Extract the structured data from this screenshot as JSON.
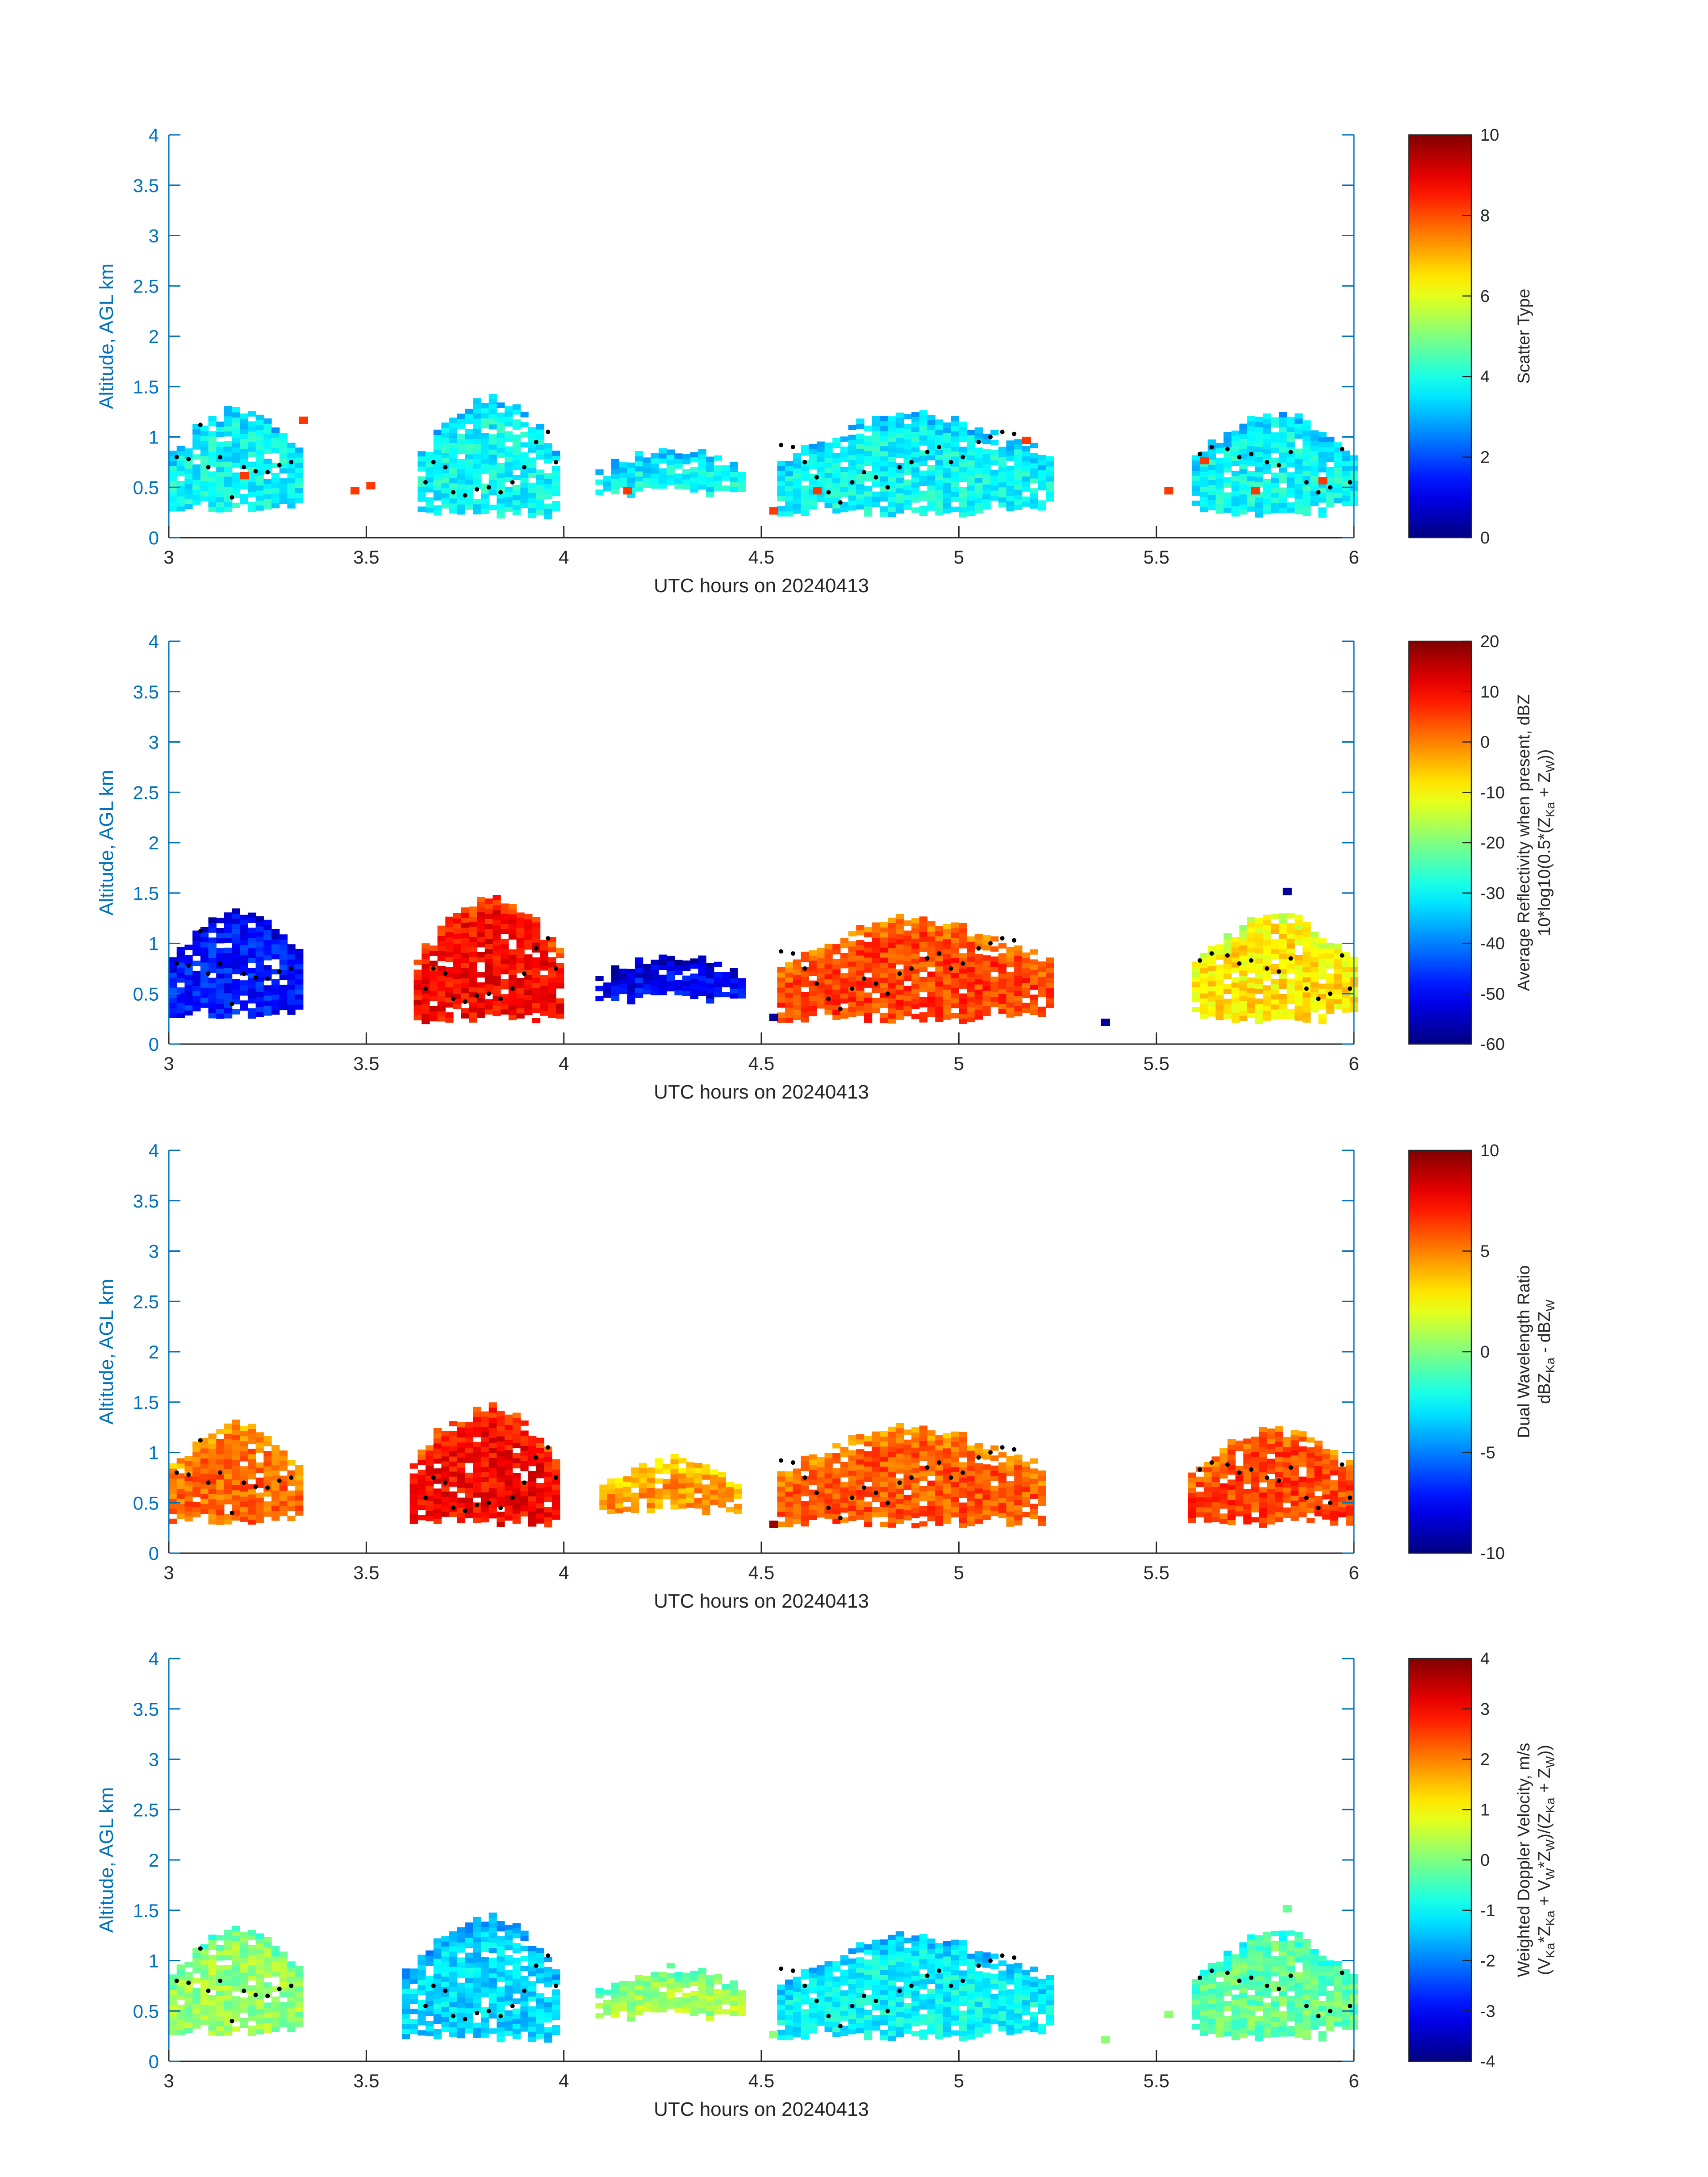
{
  "chart_data": [
    {
      "type": "heatmap",
      "xlabel": "UTC hours on 20240413",
      "ylabel": "Altitude, AGL km",
      "xlim": [
        3,
        6
      ],
      "ylim": [
        0,
        4
      ],
      "xticks": [
        "3",
        "3.5",
        "4",
        "4.5",
        "5",
        "5.5",
        "6"
      ],
      "yticks": [
        "0",
        "0.5",
        "1",
        "1.5",
        "2",
        "2.5",
        "3",
        "3.5",
        "4"
      ],
      "colorbar": {
        "label": "Scatter Type",
        "sublabel": "",
        "min": 0,
        "max": 10,
        "ticks": [
          "0",
          "2",
          "4",
          "6",
          "8",
          "10"
        ]
      },
      "regions": [
        {
          "x": [
            3.0,
            3.34
          ],
          "ybot": 0.25,
          "ytop": 1.25,
          "value": 3.8
        },
        {
          "x": [
            3.63,
            3.98
          ],
          "ybot": 0.18,
          "ytop": 1.35,
          "value": 3.8
        },
        {
          "x": [
            4.08,
            4.46
          ],
          "ybot": 0.38,
          "ytop": 0.85,
          "value": 3.8
        },
        {
          "x": [
            4.54,
            5.23
          ],
          "ybot": 0.2,
          "ytop": 1.2,
          "value": 3.8
        },
        {
          "x": [
            5.59,
            6.0
          ],
          "ybot": 0.2,
          "ytop": 1.2,
          "value": 3.8
        }
      ],
      "outliers": [
        {
          "x": 3.33,
          "y": 1.15,
          "value": 8.2
        },
        {
          "x": 3.18,
          "y": 0.6,
          "value": 8.2
        },
        {
          "x": 3.46,
          "y": 0.45,
          "value": 8.2
        },
        {
          "x": 3.5,
          "y": 0.5,
          "value": 8.2
        },
        {
          "x": 4.15,
          "y": 0.45,
          "value": 8.2
        },
        {
          "x": 4.52,
          "y": 0.25,
          "value": 8.2
        },
        {
          "x": 4.63,
          "y": 0.45,
          "value": 8.2
        },
        {
          "x": 5.16,
          "y": 0.95,
          "value": 8.2
        },
        {
          "x": 5.52,
          "y": 0.45,
          "value": 8.2
        },
        {
          "x": 5.61,
          "y": 0.75,
          "value": 8.2
        },
        {
          "x": 5.74,
          "y": 0.45,
          "value": 8.2
        },
        {
          "x": 5.91,
          "y": 0.55,
          "value": 8.2
        }
      ]
    },
    {
      "type": "heatmap",
      "xlabel": "UTC hours on 20240413",
      "ylabel": "Altitude, AGL km",
      "xlim": [
        3,
        6
      ],
      "ylim": [
        0,
        4
      ],
      "xticks": [
        "3",
        "3.5",
        "4",
        "4.5",
        "5",
        "5.5",
        "6"
      ],
      "yticks": [
        "0",
        "0.5",
        "1",
        "1.5",
        "2",
        "2.5",
        "3",
        "3.5",
        "4"
      ],
      "colorbar": {
        "label": "Average Reflectivity when present, dBZ",
        "sublabel": "10*log10(0.5*(Z",
        "sublabel_parts": [
          "Ka",
          " + Z",
          "W",
          "))"
        ],
        "min": -60,
        "max": 20,
        "ticks": [
          "-60",
          "-50",
          "-40",
          "-30",
          "-20",
          "-10",
          "0",
          "10",
          "20"
        ]
      },
      "regions": [
        {
          "x": [
            3.0,
            3.34
          ],
          "ybot": 0.25,
          "ytop": 1.3,
          "value": -48
        },
        {
          "x": [
            3.62,
            3.99
          ],
          "ybot": 0.18,
          "ytop": 1.42,
          "value": 10
        },
        {
          "x": [
            4.08,
            4.46
          ],
          "ybot": 0.38,
          "ytop": 0.85,
          "value": -50
        },
        {
          "x": [
            4.54,
            5.23
          ],
          "ybot": 0.2,
          "ytop": 1.22,
          "value": 5
        },
        {
          "x": [
            5.59,
            6.0
          ],
          "ybot": 0.2,
          "ytop": 1.25,
          "value": -8
        }
      ],
      "outliers": [
        {
          "x": 5.36,
          "y": 0.2,
          "value": -58
        },
        {
          "x": 5.82,
          "y": 1.5,
          "value": -58
        },
        {
          "x": 4.52,
          "y": 0.25,
          "value": -58
        }
      ]
    },
    {
      "type": "heatmap",
      "xlabel": "UTC hours on 20240413",
      "ylabel": "Altitude, AGL km",
      "xlim": [
        3,
        6
      ],
      "ylim": [
        0,
        4
      ],
      "xticks": [
        "3",
        "3.5",
        "4",
        "4.5",
        "5",
        "5.5",
        "6"
      ],
      "yticks": [
        "0",
        "0.5",
        "1",
        "1.5",
        "2",
        "2.5",
        "3",
        "3.5",
        "4"
      ],
      "colorbar": {
        "label": "Dual Wavelength Ratio",
        "sublabel": "dBZ",
        "sublabel_parts": [
          "Ka",
          " - dBZ",
          "W",
          ""
        ],
        "min": -10,
        "max": 10,
        "ticks": [
          "-10",
          "-5",
          "0",
          "5",
          "10"
        ]
      },
      "regions": [
        {
          "x": [
            3.0,
            3.33
          ],
          "ybot": 0.28,
          "ytop": 1.25,
          "value": 5.5
        },
        {
          "x": [
            3.61,
            3.98
          ],
          "ybot": 0.25,
          "ytop": 1.42,
          "value": 7.5
        },
        {
          "x": [
            4.09,
            4.45
          ],
          "ybot": 0.38,
          "ytop": 0.9,
          "value": 4.5
        },
        {
          "x": [
            4.54,
            5.22
          ],
          "ybot": 0.25,
          "ytop": 1.22,
          "value": 5.8
        },
        {
          "x": [
            5.58,
            6.0
          ],
          "ybot": 0.25,
          "ytop": 1.2,
          "value": 6.2
        }
      ],
      "outliers": [
        {
          "x": 4.52,
          "y": 0.27,
          "value": 9.5
        }
      ]
    },
    {
      "type": "heatmap",
      "xlabel": "UTC hours on 20240413",
      "ylabel": "Altitude, AGL km",
      "xlim": [
        3,
        6
      ],
      "ylim": [
        0,
        4
      ],
      "xticks": [
        "3",
        "3.5",
        "4",
        "4.5",
        "5",
        "5.5",
        "6"
      ],
      "yticks": [
        "0",
        "0.5",
        "1",
        "1.5",
        "2",
        "2.5",
        "3",
        "3.5",
        "4"
      ],
      "colorbar": {
        "label": "Weighted Doppler Velocity, m/s",
        "sublabel": "(V",
        "sublabel_parts": [
          "Ka",
          "*Z",
          "Ka",
          " + V",
          "W",
          "*Z",
          "W",
          ")/(Z",
          "Ka",
          " + Z",
          "W",
          "))"
        ],
        "min": -4,
        "max": 4,
        "ticks": [
          "-4",
          "-3",
          "-2",
          "-1",
          "0",
          "1",
          "2",
          "3",
          "4"
        ]
      },
      "regions": [
        {
          "x": [
            3.0,
            3.34
          ],
          "ybot": 0.25,
          "ytop": 1.3,
          "value": 0.2
        },
        {
          "x": [
            3.59,
            3.99
          ],
          "ybot": 0.18,
          "ytop": 1.4,
          "value": -1.3
        },
        {
          "x": [
            4.08,
            4.46
          ],
          "ybot": 0.38,
          "ytop": 0.9,
          "value": 0.3
        },
        {
          "x": [
            4.54,
            5.23
          ],
          "ybot": 0.2,
          "ytop": 1.22,
          "value": -1.0
        },
        {
          "x": [
            5.59,
            6.0
          ],
          "ybot": 0.2,
          "ytop": 1.25,
          "value": -0.2
        }
      ],
      "outliers": [
        {
          "x": 4.52,
          "y": 0.25,
          "value": 0.1
        },
        {
          "x": 5.36,
          "y": 0.2,
          "value": 0.1
        },
        {
          "x": 5.82,
          "y": 1.5,
          "value": -0.2
        },
        {
          "x": 5.52,
          "y": 0.45,
          "value": 0.1
        }
      ]
    }
  ],
  "dot_track": {
    "segments": [
      [
        [
          3.02,
          0.8
        ],
        [
          3.05,
          0.78
        ],
        [
          3.08,
          1.12
        ],
        [
          3.1,
          0.7
        ],
        [
          3.13,
          0.8
        ],
        [
          3.16,
          0.4
        ],
        [
          3.19,
          0.7
        ],
        [
          3.22,
          0.66
        ],
        [
          3.25,
          0.65
        ],
        [
          3.28,
          0.72
        ],
        [
          3.31,
          0.75
        ]
      ],
      [
        [
          3.65,
          0.55
        ],
        [
          3.67,
          0.75
        ],
        [
          3.7,
          0.7
        ],
        [
          3.72,
          0.45
        ],
        [
          3.75,
          0.42
        ],
        [
          3.78,
          0.48
        ],
        [
          3.81,
          0.5
        ],
        [
          3.84,
          0.45
        ],
        [
          3.87,
          0.55
        ],
        [
          3.9,
          0.7
        ],
        [
          3.93,
          0.95
        ],
        [
          3.96,
          1.05
        ],
        [
          3.98,
          0.75
        ]
      ],
      [
        [
          4.55,
          0.92
        ],
        [
          4.58,
          0.9
        ],
        [
          4.61,
          0.75
        ],
        [
          4.64,
          0.6
        ],
        [
          4.67,
          0.45
        ],
        [
          4.7,
          0.35
        ],
        [
          4.73,
          0.55
        ],
        [
          4.76,
          0.65
        ],
        [
          4.79,
          0.6
        ],
        [
          4.82,
          0.5
        ],
        [
          4.85,
          0.7
        ],
        [
          4.88,
          0.75
        ],
        [
          4.92,
          0.85
        ],
        [
          4.95,
          0.9
        ],
        [
          4.98,
          0.75
        ],
        [
          5.01,
          0.8
        ],
        [
          5.05,
          0.95
        ],
        [
          5.08,
          1.0
        ],
        [
          5.11,
          1.05
        ],
        [
          5.14,
          1.03
        ]
      ],
      [
        [
          5.61,
          0.83
        ],
        [
          5.64,
          0.9
        ],
        [
          5.68,
          0.88
        ],
        [
          5.71,
          0.8
        ],
        [
          5.74,
          0.83
        ],
        [
          5.78,
          0.75
        ],
        [
          5.81,
          0.72
        ],
        [
          5.84,
          0.85
        ],
        [
          5.88,
          0.55
        ],
        [
          5.91,
          0.45
        ],
        [
          5.94,
          0.5
        ],
        [
          5.97,
          0.88
        ],
        [
          5.99,
          0.55
        ]
      ]
    ]
  }
}
